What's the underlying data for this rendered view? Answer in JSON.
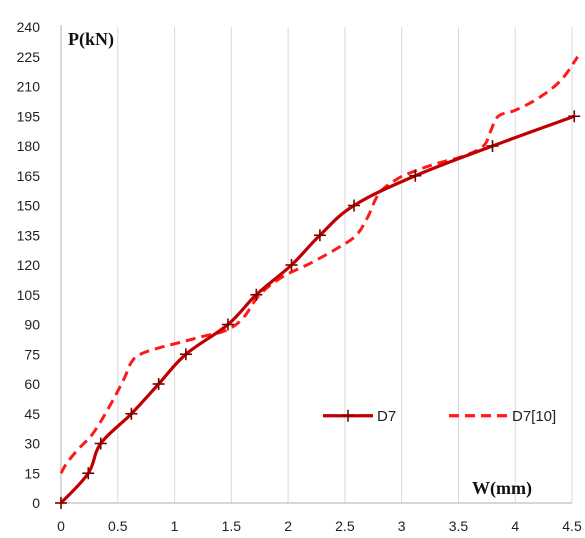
{
  "chart_data": {
    "type": "line",
    "xlabel": "W(mm)",
    "ylabel": "P(kN)",
    "xlim": [
      0,
      4.5
    ],
    "ylim": [
      0,
      240
    ],
    "x_ticks": [
      "0",
      "0.5",
      "1",
      "1.5",
      "2",
      "2.5",
      "3",
      "3.5",
      "4",
      "4.5"
    ],
    "y_ticks": [
      "0",
      "15",
      "30",
      "45",
      "60",
      "75",
      "90",
      "105",
      "120",
      "135",
      "150",
      "165",
      "180",
      "195",
      "210",
      "225",
      "240"
    ],
    "grid": "vertical",
    "legend_position": "center-right",
    "series": [
      {
        "name": "D7",
        "color": "#c00000",
        "style": "solid",
        "marker": "plus",
        "x": [
          0,
          0.24,
          0.35,
          0.62,
          0.86,
          1.1,
          1.47,
          1.72,
          2.03,
          2.28,
          2.58,
          3.12,
          3.8,
          4.52
        ],
        "y": [
          0,
          15,
          30,
          45,
          60,
          75,
          90,
          105,
          120,
          135,
          150,
          165,
          180,
          195
        ]
      },
      {
        "name": "D7[10]",
        "color": "#ff1a1a",
        "style": "dashed",
        "marker": "none",
        "x": [
          0,
          0.05,
          0.15,
          0.28,
          0.42,
          0.55,
          0.62,
          0.7,
          0.85,
          1.05,
          1.25,
          1.45,
          1.6,
          1.75,
          1.95,
          2.2,
          2.45,
          2.6,
          2.7,
          2.8,
          2.95,
          3.1,
          3.3,
          3.55,
          3.72,
          3.78,
          3.85,
          4.0,
          4.2,
          4.4,
          4.55
        ],
        "y": [
          15,
          20,
          27,
          35,
          48,
          62,
          71,
          75,
          78,
          81,
          84,
          87,
          93,
          105,
          114,
          121,
          129,
          135,
          144,
          156,
          163,
          167,
          171,
          175,
          180,
          187,
          195,
          198,
          204,
          213,
          225
        ]
      }
    ]
  }
}
